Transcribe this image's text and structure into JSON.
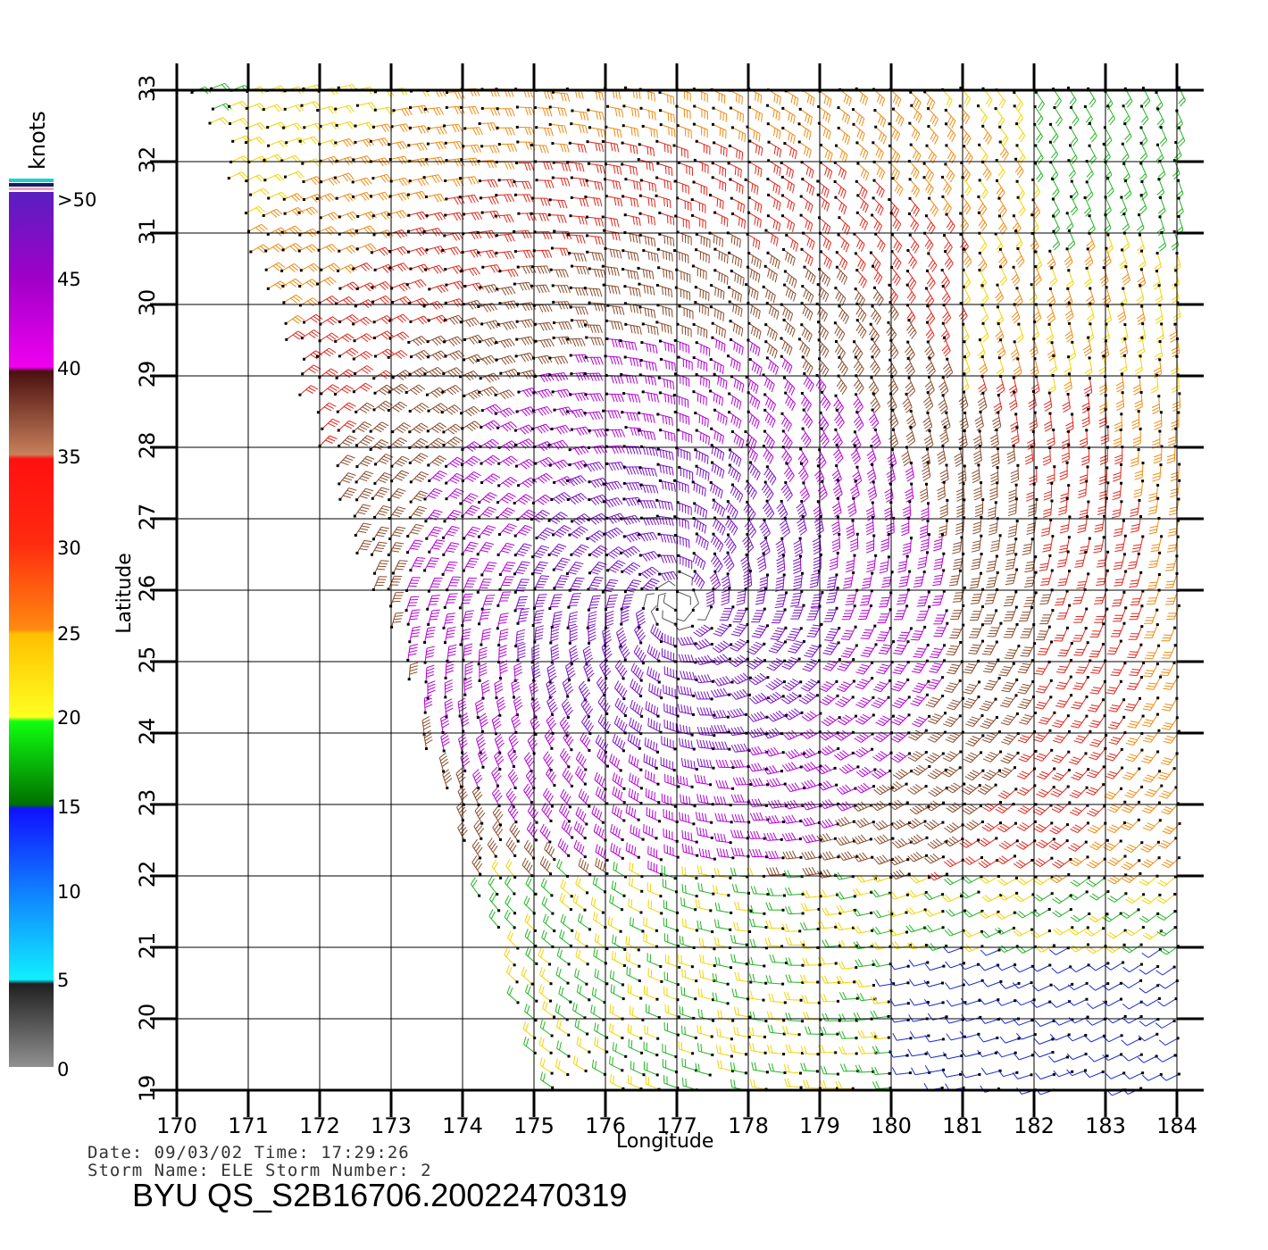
{
  "colorbar": {
    "unit": "knots",
    "labels": [
      ">50",
      "45",
      "40",
      "35",
      "30",
      "25",
      "20",
      "15",
      "10",
      "5",
      "0"
    ]
  },
  "axes": {
    "xlabel": "Longitude",
    "ylabel": "Latitude",
    "xticks": [
      "170",
      "171",
      "172",
      "173",
      "174",
      "175",
      "176",
      "177",
      "178",
      "179",
      "180",
      "181",
      "182",
      "183",
      "184"
    ],
    "yticks": [
      "19",
      "20",
      "21",
      "22",
      "23",
      "24",
      "25",
      "26",
      "27",
      "28",
      "29",
      "30",
      "31",
      "32",
      "33"
    ],
    "xlim": [
      170,
      184
    ],
    "ylim": [
      19,
      33
    ]
  },
  "info": {
    "line1": "Date: 09/03/02  Time: 17:29:26",
    "line2": "Storm Name: ELE   Storm Number: 2"
  },
  "title": "BYU  QS_S2B16706.20022470319",
  "wind_field": {
    "storm_center_lon": 177.0,
    "storm_center_lat": 25.8,
    "colors": {
      "purple": "#7a10c8",
      "violet": "#b400d6",
      "brown": "#8a4a2a",
      "red": "#e0261a",
      "orange": "#f08a10",
      "yellow": "#f2d400",
      "green": "#22b522",
      "blue": "#1a2ad0",
      "gray": "#555555"
    }
  }
}
